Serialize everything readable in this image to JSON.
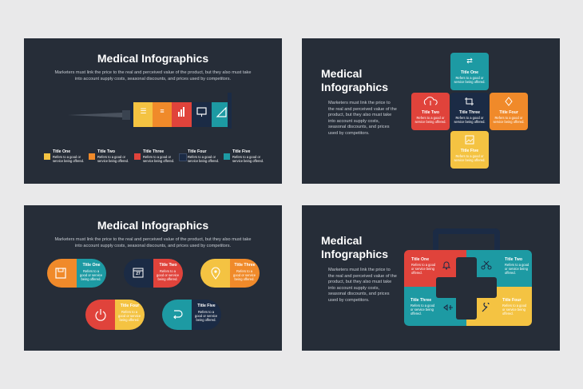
{
  "colors": {
    "bg": "#262d38",
    "yellow": "#f4c342",
    "orange": "#f08a2a",
    "red": "#e0433b",
    "navy": "#1b2b45",
    "teal": "#1d9aa3"
  },
  "slide1": {
    "title": "Medical Infographics",
    "body": "Marketers must link the price to the real and perceived value of the product, but they also must take into account supply costs, seasonal discounts, and prices used by competitors.",
    "syringe_icons": [
      "list-icon",
      "menu-icon",
      "bar-chart-icon",
      "monitor-icon",
      "ruler-icon"
    ],
    "legend": [
      {
        "title": "Title One",
        "text": "Refers to a good or service being offered."
      },
      {
        "title": "Title Two",
        "text": "Refers to a good or service being offered."
      },
      {
        "title": "Title Three",
        "text": "Refers to a good or service being offered."
      },
      {
        "title": "Title Four",
        "text": "Refers to a good or service being offered."
      },
      {
        "title": "Title Five",
        "text": "Refers to a good or service being offered."
      }
    ]
  },
  "slide2": {
    "title": "Medical Infographics",
    "body": "Marketers must link the price to the real and perceived value of the product, but they also must take into account supply costs, seasonal discounts, and prices used by competitors.",
    "tiles": [
      {
        "title": "Title One",
        "text": "Refers to a good or service being offered."
      },
      {
        "title": "Title Two",
        "text": "Refers to a good or service being offered."
      },
      {
        "title": "Title Three",
        "text": "Refers to a good or service being offered."
      },
      {
        "title": "Title Four",
        "text": "Refers to a good or service being offered."
      },
      {
        "title": "Title Five",
        "text": "Refers to a good or service being offered."
      }
    ]
  },
  "slide3": {
    "title": "Medical Infographics",
    "body": "Marketers must link the price to the real and perceived value of the product, but they also must take into account supply costs, seasonal discounts, and prices used by competitors.",
    "pills": [
      {
        "title": "Title One",
        "text": "Refers to a good or service being offered."
      },
      {
        "title": "Title Two",
        "text": "Refers to a good or service being offered."
      },
      {
        "title": "Title Three",
        "text": "Refers to a good or service being offered."
      },
      {
        "title": "Title Four",
        "text": "Refers to a good or service being offered."
      },
      {
        "title": "Title Five",
        "text": "Refers to a good or service being offered."
      }
    ],
    "calendar_day": "27"
  },
  "slide4": {
    "title": "Medical Infographics",
    "body": "Marketers must link the price to the real and perceived value of the product, but they also must take into account supply costs, seasonal discounts, and prices used by competitors.",
    "quadrants": [
      {
        "title": "Title One",
        "text": "Refers to a good or service being offered."
      },
      {
        "title": "Title Two",
        "text": "Refers to a good or service being offered."
      },
      {
        "title": "Title Three",
        "text": "Refers to a good or service being offered."
      },
      {
        "title": "Title Four",
        "text": "Refers to a good or service being offered."
      }
    ]
  }
}
